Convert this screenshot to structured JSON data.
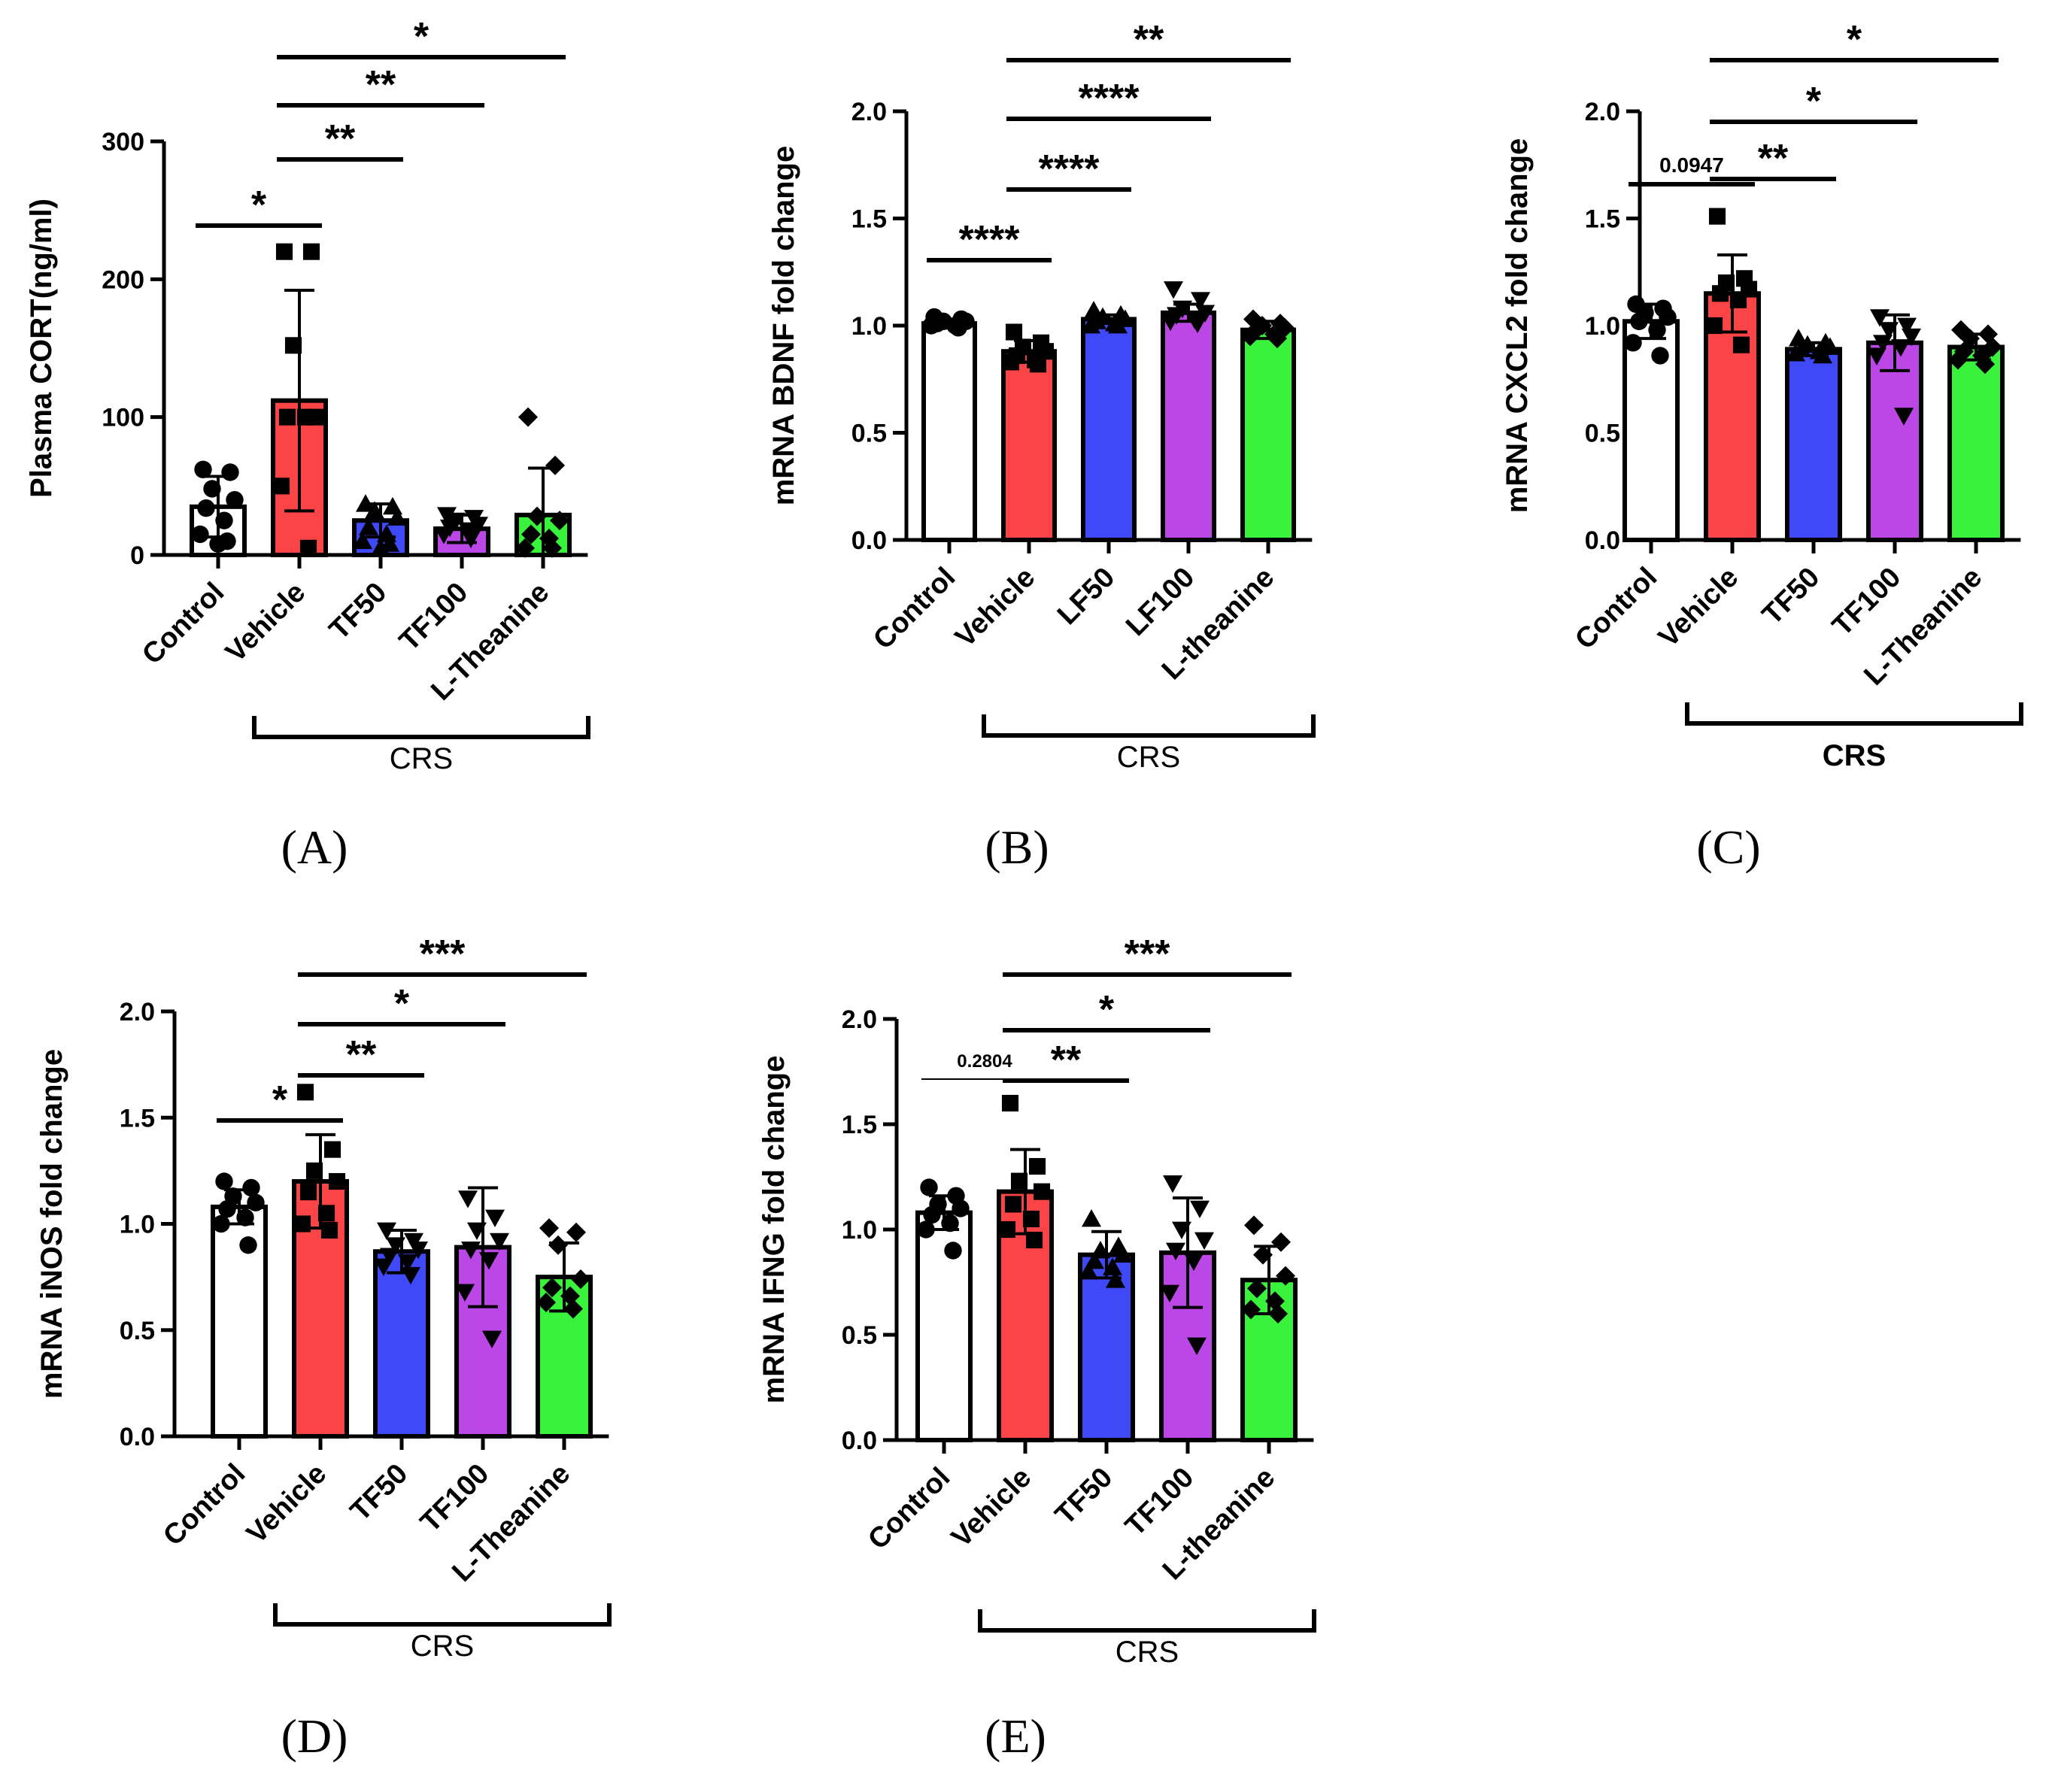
{
  "colors": {
    "control": "#ffffff",
    "vehicle": "#fb4445",
    "treatment_a": "#3f49f7",
    "treatment_b": "#bb47e6",
    "l_theanine": "#38f23c",
    "stroke": "#000000"
  },
  "chart_data": [
    {
      "id": "A",
      "panel_label": "(A)",
      "type": "bar",
      "ylabel": "Plasma CORT(ng/ml)",
      "ylim": [
        0,
        300
      ],
      "yticks": [
        0,
        100,
        200,
        300
      ],
      "ytick_labels": [
        "0",
        "100",
        "200",
        "300"
      ],
      "categories": [
        "Control",
        "Vehicle",
        "TF50",
        "TF100",
        "L-Theanine"
      ],
      "values": [
        35,
        112,
        25,
        19,
        29
      ],
      "sd": [
        22,
        80,
        12,
        10,
        34
      ],
      "points": [
        [
          62,
          60,
          48,
          40,
          34,
          25,
          15,
          10,
          8
        ],
        [
          220,
          220,
          152,
          100,
          100,
          100,
          50,
          5
        ],
        [
          37,
          35,
          32,
          27,
          20,
          15,
          10,
          8,
          5
        ],
        [
          29,
          27,
          25,
          22,
          20,
          18,
          15,
          12
        ],
        [
          100,
          65,
          28,
          25,
          15,
          12,
          5,
          5
        ]
      ],
      "markers": [
        "circle",
        "square",
        "triangle-up",
        "triangle-down",
        "diamond"
      ],
      "group_label": "CRS",
      "group_bold": false,
      "group_span": [
        1,
        4
      ],
      "comparisons": [
        {
          "from": 0,
          "to": 1,
          "label": "*"
        },
        {
          "from": 1,
          "to": 2,
          "label": "**"
        },
        {
          "from": 1,
          "to": 3,
          "label": "**"
        },
        {
          "from": 1,
          "to": 4,
          "label": "*"
        }
      ]
    },
    {
      "id": "B",
      "panel_label": "(B)",
      "type": "bar",
      "ylabel": "mRNA  BDNF fold change",
      "ylim": [
        0,
        2.0
      ],
      "yticks": [
        0,
        0.5,
        1.0,
        1.5,
        2.0
      ],
      "ytick_labels": [
        "0.0",
        "0.5",
        "1.0",
        "1.5",
        "2.0"
      ],
      "categories": [
        "Control",
        "Vehicle",
        "LF50",
        "LF100",
        "L-theanine"
      ],
      "values": [
        1.01,
        0.88,
        1.03,
        1.06,
        0.98
      ],
      "sd": [
        0.02,
        0.05,
        0.02,
        0.04,
        0.04
      ],
      "points": [
        [
          1.04,
          1.03,
          1.02,
          1.02,
          1.01,
          1.0,
          1.0,
          0.99
        ],
        [
          0.97,
          0.92,
          0.9,
          0.88,
          0.86,
          0.84,
          0.83,
          0.82
        ],
        [
          1.07,
          1.05,
          1.04,
          1.03,
          1.02,
          1.01,
          1.0,
          1.0
        ],
        [
          1.17,
          1.12,
          1.08,
          1.06,
          1.05,
          1.03,
          1.02,
          1.01
        ],
        [
          1.03,
          1.01,
          1.0,
          0.99,
          0.98,
          0.96,
          0.95,
          0.94
        ]
      ],
      "markers": [
        "circle",
        "square",
        "triangle-up",
        "triangle-down",
        "diamond"
      ],
      "group_label": "CRS",
      "group_bold": false,
      "group_span": [
        1,
        4
      ],
      "comparisons": [
        {
          "from": 0,
          "to": 1,
          "label": "****"
        },
        {
          "from": 1,
          "to": 2,
          "label": "****"
        },
        {
          "from": 1,
          "to": 3,
          "label": "****"
        },
        {
          "from": 1,
          "to": 4,
          "label": "**"
        }
      ]
    },
    {
      "id": "C",
      "panel_label": "(C)",
      "type": "bar",
      "ylabel": "mRNA CXCL2 fold change",
      "ylim": [
        0,
        2.0
      ],
      "yticks": [
        0,
        0.5,
        1.0,
        1.5,
        2.0
      ],
      "ytick_labels": [
        "0.0",
        "0.5",
        "1.0",
        "1.5",
        "2.0"
      ],
      "categories": [
        "Control",
        "Vehicle",
        "TF50",
        "TF100",
        "L-Theanine"
      ],
      "values": [
        1.02,
        1.15,
        0.89,
        0.92,
        0.9
      ],
      "sd": [
        0.08,
        0.18,
        0.03,
        0.13,
        0.06
      ],
      "points": [
        [
          1.1,
          1.08,
          1.06,
          1.04,
          1.02,
          0.98,
          0.92,
          0.86
        ],
        [
          1.51,
          1.22,
          1.2,
          1.17,
          1.15,
          1.12,
          1.0,
          0.91
        ],
        [
          0.94,
          0.92,
          0.91,
          0.9,
          0.89,
          0.88,
          0.87,
          0.86
        ],
        [
          1.04,
          1.0,
          0.98,
          0.95,
          0.92,
          0.9,
          0.86,
          0.58
        ],
        [
          0.98,
          0.96,
          0.94,
          0.9,
          0.88,
          0.86,
          0.84,
          0.82
        ]
      ],
      "markers": [
        "circle",
        "square",
        "triangle-up",
        "triangle-down",
        "diamond"
      ],
      "group_label": "CRS",
      "group_bold": true,
      "group_span": [
        1,
        4
      ],
      "comparisons": [
        {
          "from": 0,
          "to": 1,
          "label": "0.0947"
        },
        {
          "from": 1,
          "to": 2,
          "label": "**"
        },
        {
          "from": 1,
          "to": 3,
          "label": "*"
        },
        {
          "from": 1,
          "to": 4,
          "label": "*"
        }
      ]
    },
    {
      "id": "D",
      "panel_label": "(D)",
      "type": "bar",
      "ylabel": "mRNA iNOS fold change",
      "ylim": [
        0,
        2.0
      ],
      "yticks": [
        0,
        0.5,
        1.0,
        1.5,
        2.0
      ],
      "ytick_labels": [
        "0.0",
        "0.5",
        "1.0",
        "1.5",
        "2.0"
      ],
      "categories": [
        "Control",
        "Vehicle",
        "TF50",
        "TF100",
        "L-Theanine"
      ],
      "values": [
        1.08,
        1.2,
        0.87,
        0.89,
        0.75
      ],
      "sd": [
        0.08,
        0.22,
        0.1,
        0.28,
        0.16
      ],
      "points": [
        [
          1.2,
          1.17,
          1.13,
          1.1,
          1.07,
          1.03,
          1.0,
          0.9
        ],
        [
          1.62,
          1.35,
          1.25,
          1.2,
          1.15,
          1.05,
          1.0,
          0.97
        ],
        [
          0.97,
          0.92,
          0.9,
          0.88,
          0.85,
          0.82,
          0.8,
          0.76
        ],
        [
          1.12,
          1.03,
          0.97,
          0.92,
          0.88,
          0.83,
          0.68,
          0.46
        ],
        [
          0.98,
          0.96,
          0.9,
          0.74,
          0.7,
          0.66,
          0.63,
          0.6
        ]
      ],
      "markers": [
        "circle",
        "square",
        "triangle-down",
        "triangle-down",
        "diamond"
      ],
      "group_label": "CRS",
      "group_bold": false,
      "group_span": [
        1,
        4
      ],
      "comparisons": [
        {
          "from": 0,
          "to": 1,
          "label": "*"
        },
        {
          "from": 1,
          "to": 2,
          "label": "**"
        },
        {
          "from": 1,
          "to": 3,
          "label": "*"
        },
        {
          "from": 1,
          "to": 4,
          "label": "***"
        }
      ]
    },
    {
      "id": "E",
      "panel_label": "(E)",
      "type": "bar",
      "ylabel": "mRNA IFNG fold change",
      "ylim": [
        0,
        2.0
      ],
      "yticks": [
        0,
        0.5,
        1.0,
        1.5,
        2.0
      ],
      "ytick_labels": [
        "0.0",
        "0.5",
        "1.0",
        "1.5",
        "2.0"
      ],
      "categories": [
        "Control",
        "Vehicle",
        "TF50",
        "TF100",
        "L-theanine"
      ],
      "values": [
        1.08,
        1.18,
        0.88,
        0.89,
        0.76
      ],
      "sd": [
        0.08,
        0.2,
        0.11,
        0.26,
        0.16
      ],
      "points": [
        [
          1.2,
          1.16,
          1.12,
          1.1,
          1.07,
          1.03,
          1.0,
          0.9
        ],
        [
          1.6,
          1.3,
          1.23,
          1.18,
          1.12,
          1.05,
          1.0,
          0.95
        ],
        [
          1.05,
          0.92,
          0.9,
          0.88,
          0.85,
          0.82,
          0.8,
          0.76
        ],
        [
          1.22,
          1.1,
          1.0,
          0.95,
          0.9,
          0.85,
          0.7,
          0.45
        ],
        [
          1.02,
          0.94,
          0.88,
          0.78,
          0.72,
          0.66,
          0.62,
          0.6
        ]
      ],
      "markers": [
        "circle",
        "square",
        "triangle-up",
        "triangle-down",
        "diamond"
      ],
      "group_label": "CRS",
      "group_bold": false,
      "group_span": [
        1,
        4
      ],
      "comparisons": [
        {
          "from": 0,
          "to": 1,
          "label": "0.2804"
        },
        {
          "from": 1,
          "to": 2,
          "label": "**"
        },
        {
          "from": 1,
          "to": 3,
          "label": "*"
        },
        {
          "from": 1,
          "to": 4,
          "label": "***"
        }
      ]
    }
  ]
}
